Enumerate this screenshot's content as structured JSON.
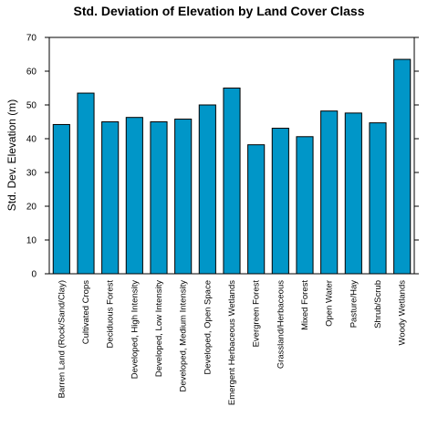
{
  "chart_data": {
    "type": "bar",
    "title": "Std. Deviation of Elevation by Land Cover Class",
    "xlabel": "",
    "ylabel": "Std. Dev. Elevation (m)",
    "ylim": [
      0,
      70
    ],
    "yticks": [
      0,
      10,
      20,
      30,
      40,
      50,
      60,
      70
    ],
    "grid": false,
    "bar_color": "#0096c8",
    "categories": [
      "Barren Land (Rock/Sand/Clay)",
      "Cultivated Crops",
      "Deciduous Forest",
      "Developed, High Intensity",
      "Developed, Low Intensity",
      "Developed, Medium Intensity",
      "Developed, Open Space",
      "Emergent Herbaceous Wetlands",
      "Evergreen Forest",
      "Grassland/Herbaceous",
      "Mixed Forest",
      "Open Water",
      "Pasture/Hay",
      "Shrub/Scrub",
      "Woody Wetlands"
    ],
    "values": [
      44.2,
      53.5,
      45.0,
      46.3,
      45.0,
      45.8,
      50.0,
      55.0,
      38.2,
      43.1,
      40.6,
      48.2,
      47.6,
      44.7,
      63.5
    ]
  }
}
